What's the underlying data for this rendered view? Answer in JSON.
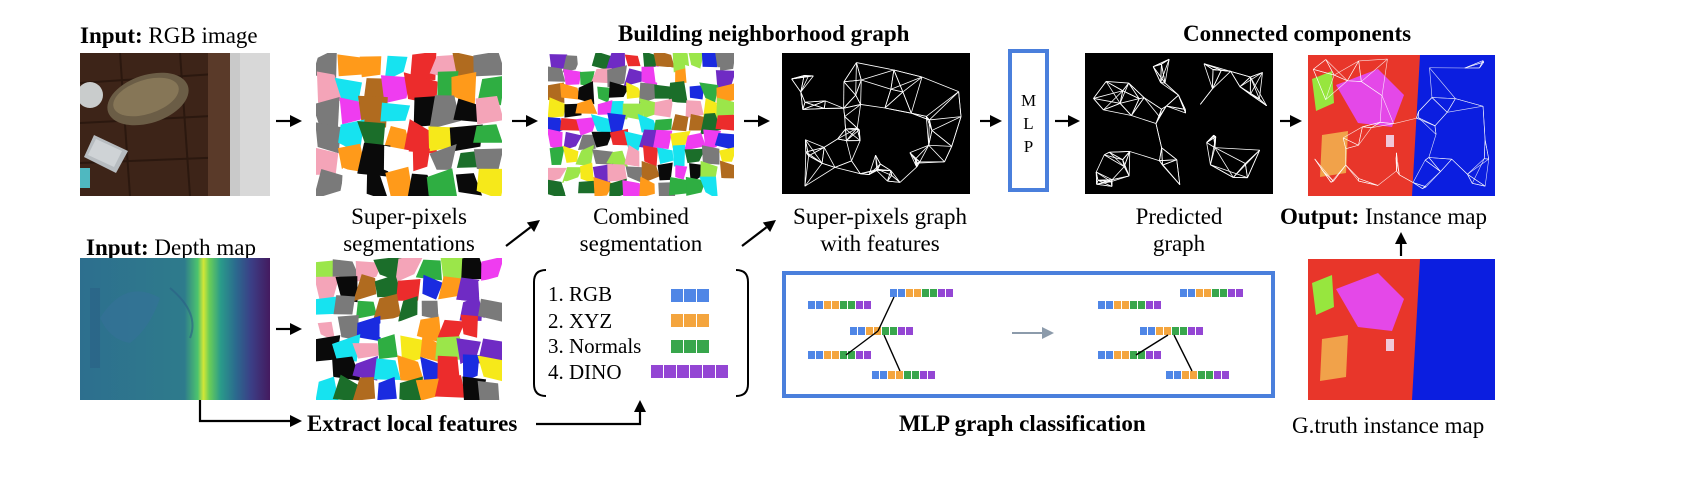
{
  "labels": {
    "input_rgb_bold": "Input:",
    "input_rgb_rest": "RGB image",
    "input_depth_bold": "Input:",
    "input_depth_rest": "Depth map",
    "building_graph": "Building neighborhood graph",
    "connected_components": "Connected components",
    "superpixel_seg_1": "Super-pixels",
    "superpixel_seg_2": "segmentations",
    "combined_seg_1": "Combined",
    "combined_seg_2": "segmentation",
    "sp_graph_1": "Super-pixels graph",
    "sp_graph_2": "with features",
    "predicted_graph_1": "Predicted",
    "predicted_graph_2": "graph",
    "output_bold": "Output:",
    "output_rest": "Instance map",
    "extract_features": "Extract local features",
    "mlp_classification": "MLP graph classification",
    "gt_instance_map": "G.truth instance map"
  },
  "mlp_box": {
    "letters": [
      "M",
      "L",
      "P"
    ]
  },
  "features": [
    {
      "label": "1. RGB",
      "color": "#4f86e6",
      "cells": 3
    },
    {
      "label": "2. XYZ",
      "color": "#f4a53e",
      "cells": 3
    },
    {
      "label": "3. Normals",
      "color": "#38a64c",
      "cells": 3
    },
    {
      "label": "4. DINO",
      "color": "#9446d4",
      "cells": 6
    }
  ],
  "colors": {
    "accent_blue": "#4a7fdc",
    "instance_red": "#e8362a",
    "instance_blue": "#0b1ee0",
    "arrow": "#000000",
    "mlp_arrow": "#8c9bab"
  }
}
